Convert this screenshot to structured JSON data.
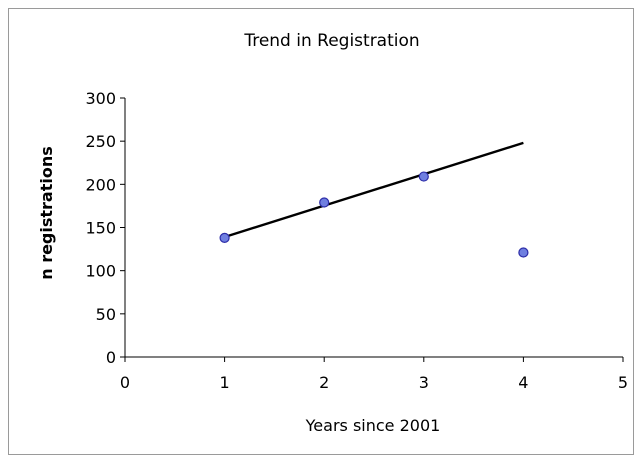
{
  "chart_data": {
    "type": "scatter",
    "title": "Trend in Registration",
    "xlabel": "Years since 2001",
    "ylabel": "n registrations",
    "xlim": [
      0,
      5
    ],
    "ylim": [
      0,
      300
    ],
    "xticks": [
      0,
      1,
      2,
      3,
      4,
      5
    ],
    "yticks": [
      0,
      50,
      100,
      150,
      200,
      250,
      300
    ],
    "grid": false,
    "legend": "none",
    "series": [
      {
        "points": [
          {
            "x": 1,
            "y": 138
          },
          {
            "x": 2,
            "y": 179
          },
          {
            "x": 3,
            "y": 209
          },
          {
            "x": 4,
            "y": 121
          }
        ],
        "marker_color": "#6f7fe0",
        "marker_edge": "#2d2da8"
      }
    ],
    "trendline": {
      "x": [
        1,
        4
      ],
      "y": [
        139,
        248
      ],
      "color": "#000000"
    }
  }
}
